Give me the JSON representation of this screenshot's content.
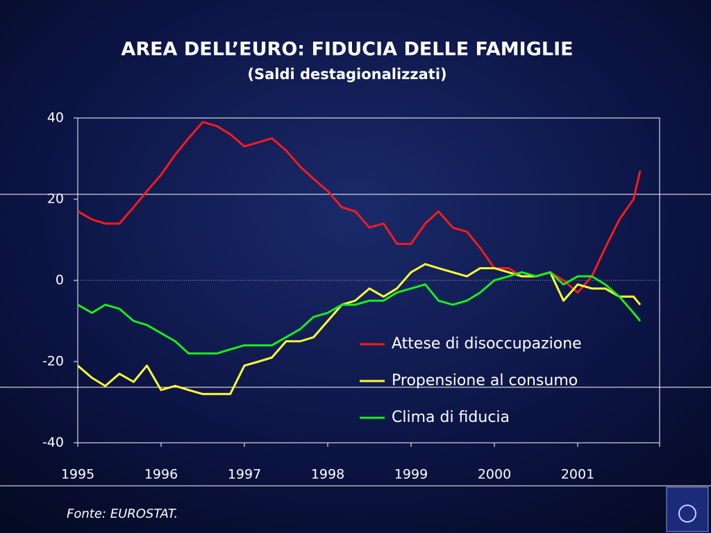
{
  "chart_data": {
    "type": "line",
    "title": "AREA DELL’EURO: FIDUCIA DELLE FAMIGLIE",
    "subtitle": "(Saldi destagionalizzati)",
    "source": "Fonte:  EUROSTAT.",
    "x": [
      1995,
      1995.17,
      1995.33,
      1995.5,
      1995.67,
      1995.83,
      1996,
      1996.17,
      1996.33,
      1996.5,
      1996.67,
      1996.83,
      1997,
      1997.17,
      1997.33,
      1997.5,
      1997.67,
      1997.83,
      1998,
      1998.17,
      1998.33,
      1998.5,
      1998.67,
      1998.83,
      1999,
      1999.17,
      1999.33,
      1999.5,
      1999.67,
      1999.83,
      2000,
      2000.17,
      2000.33,
      2000.5,
      2000.67,
      2000.83,
      2001,
      2001.17,
      2001.33,
      2001.5,
      2001.67,
      2001.75
    ],
    "series": [
      {
        "name": "Attese di disoccupazione",
        "color": "#ff1a1a",
        "values": [
          17,
          15,
          14,
          14,
          18,
          22,
          26,
          31,
          35,
          39,
          38,
          36,
          33,
          34,
          35,
          32,
          28,
          25,
          22,
          18,
          17,
          13,
          14,
          9,
          9,
          14,
          17,
          13,
          12,
          8,
          3,
          3,
          1,
          1,
          2,
          0,
          -3,
          1,
          8,
          15,
          20,
          27
        ]
      },
      {
        "name": "Propensione al consumo",
        "color": "#ffff33",
        "values": [
          -21,
          -24,
          -26,
          -23,
          -25,
          -21,
          -27,
          -26,
          -27,
          -28,
          -28,
          -28,
          -21,
          -20,
          -19,
          -15,
          -15,
          -14,
          -10,
          -6,
          -5,
          -2,
          -4,
          -2,
          2,
          4,
          3,
          2,
          1,
          3,
          3,
          2,
          1,
          1,
          2,
          -5,
          -1,
          -2,
          -2,
          -4,
          -4,
          -6
        ]
      },
      {
        "name": "Clima di fiducia",
        "color": "#1aee1a",
        "values": [
          -6,
          -8,
          -6,
          -7,
          -10,
          -11,
          -13,
          -15,
          -18,
          -18,
          -18,
          -17,
          -16,
          -16,
          -16,
          -14,
          -12,
          -9,
          -8,
          -6,
          -6,
          -5,
          -5,
          -3,
          -2,
          -1,
          -5,
          -6,
          -5,
          -3,
          0,
          1,
          2,
          1,
          2,
          -1,
          1,
          1,
          -1,
          -4,
          -8,
          -10
        ]
      }
    ],
    "xlim": [
      1995,
      2002
    ],
    "xticks": [
      1995,
      1996,
      1997,
      1998,
      1999,
      2000,
      2001
    ],
    "ylim": [
      -40,
      40
    ],
    "yticks": [
      -40,
      -20,
      0,
      20,
      40
    ]
  }
}
